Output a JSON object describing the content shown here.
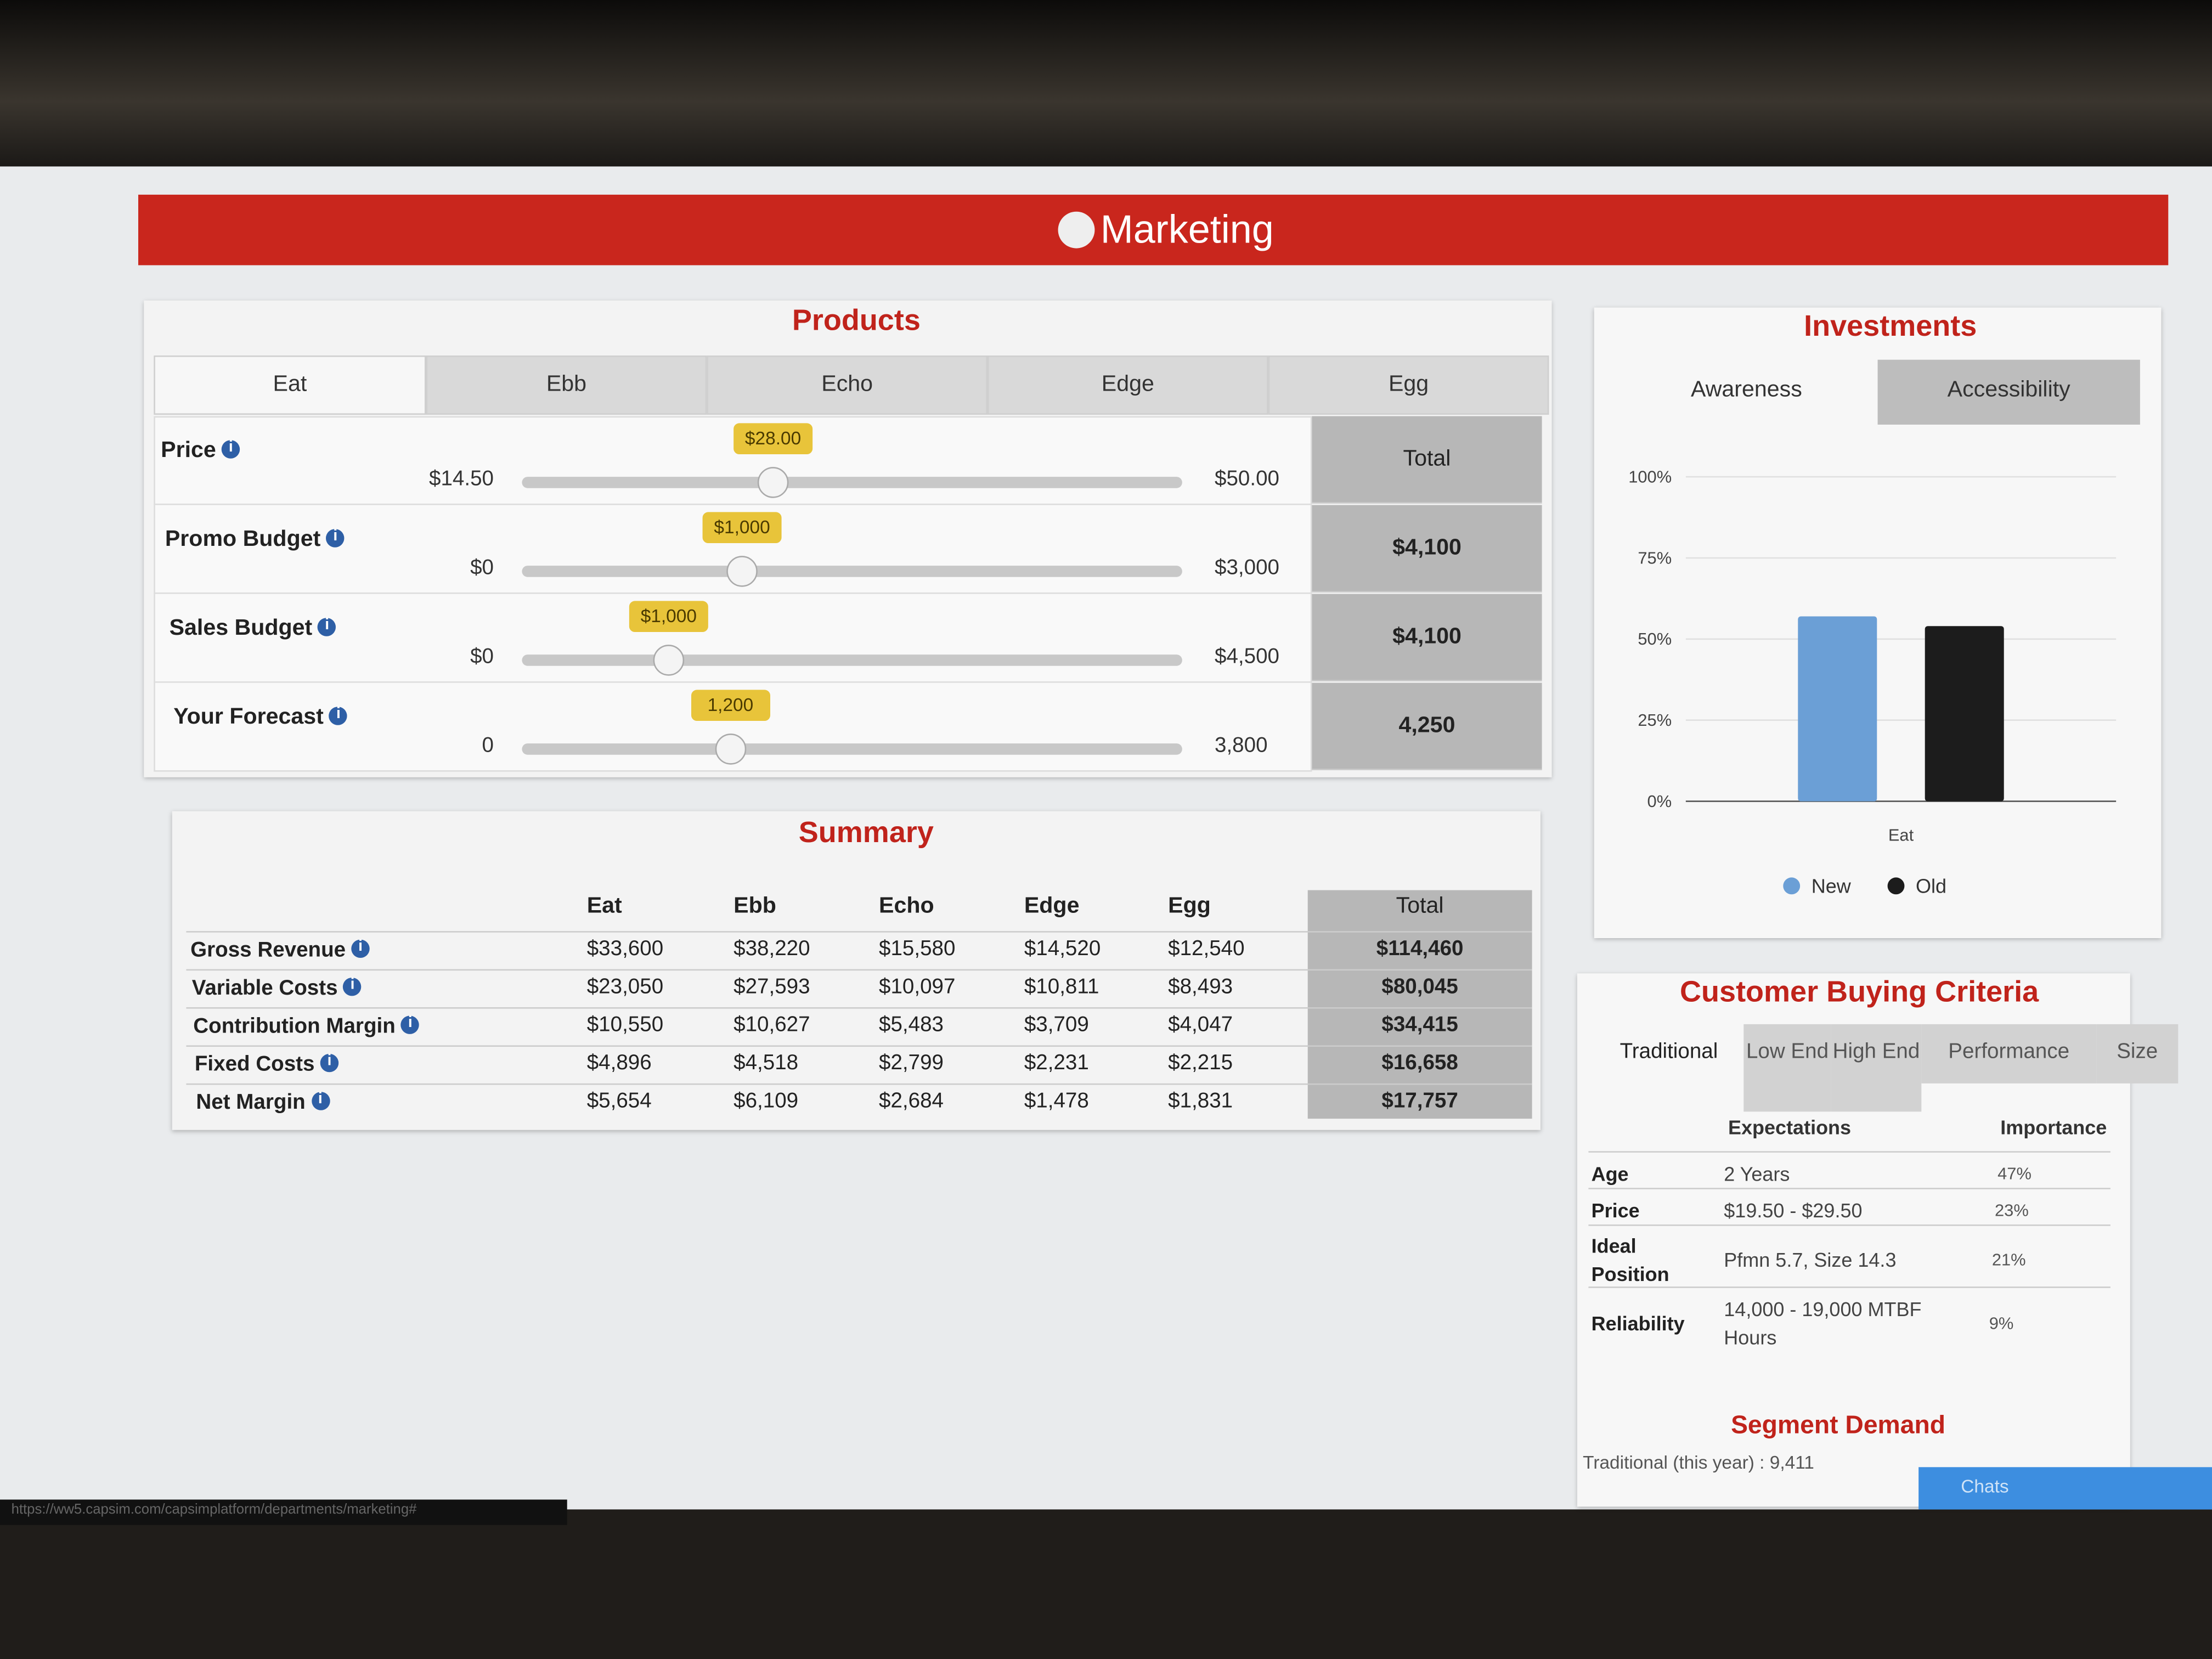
{
  "header": {
    "title": "Marketing"
  },
  "products": {
    "title": "Products",
    "tabs": [
      "Eat",
      "Ebb",
      "Echo",
      "Edge",
      "Egg"
    ],
    "total_header": "Total",
    "rows": [
      {
        "label": "Price",
        "min": {
          "value": 14.5,
          "label": "$14.50"
        },
        "max": {
          "value": 50,
          "label": "$50.00"
        },
        "value": {
          "value": 28,
          "label": "$28.00"
        }
      },
      {
        "label": "Promo Budget",
        "min": {
          "value": 0,
          "label": "$0"
        },
        "max": {
          "value": 3000,
          "label": "$3,000"
        },
        "value": {
          "value": 1000,
          "label": "$1,000"
        },
        "total": "$4,100"
      },
      {
        "label": "Sales Budget",
        "min": {
          "value": 0,
          "label": "$0"
        },
        "max": {
          "value": 4500,
          "label": "$4,500"
        },
        "value": {
          "value": 1000,
          "label": "$1,000"
        },
        "total": "$4,100"
      },
      {
        "label": "Your Forecast",
        "min": 0,
        "max": {
          "value": 3800,
          "label": "3,800"
        },
        "value": {
          "value": 1200,
          "label": "1,200"
        },
        "total": "4,250"
      }
    ]
  },
  "summary": {
    "title": "Summary",
    "columns": [
      "Eat",
      "Ebb",
      "Echo",
      "Edge",
      "Egg",
      "Total"
    ],
    "rows": [
      {
        "label": "Gross Revenue",
        "cells": [
          "$33,600",
          "$38,220",
          "$15,580",
          "$14,520",
          "$12,540",
          "$114,460"
        ]
      },
      {
        "label": "Variable Costs",
        "cells": [
          "$23,050",
          "$27,593",
          "$10,097",
          "$10,811",
          "$8,493",
          "$80,045"
        ]
      },
      {
        "label": "Contribution Margin",
        "cells": [
          "$10,550",
          "$10,627",
          "$5,483",
          "$3,709",
          "$4,047",
          "$34,415"
        ]
      },
      {
        "label": "Fixed Costs",
        "cells": [
          "$4,896",
          "$4,518",
          "$2,799",
          "$2,231",
          "$2,215",
          "$16,658"
        ]
      },
      {
        "label": "Net Margin",
        "cells": [
          "$5,654",
          "$6,109",
          "$2,684",
          "$1,478",
          "$1,831",
          "$17,757"
        ]
      }
    ]
  },
  "investments": {
    "title": "Investments",
    "tabs": [
      "Awareness",
      "Accessibility"
    ],
    "chart_data": {
      "type": "bar",
      "categories": [
        "Eat"
      ],
      "series": [
        {
          "name": "New",
          "color": "#6b9fd6",
          "values": [
            57
          ]
        },
        {
          "name": "Old",
          "color": "#1c1c1c",
          "values": [
            54
          ]
        }
      ],
      "ylim": [
        0,
        100
      ],
      "yticks": [
        {
          "value": 0,
          "label": "0%"
        },
        {
          "value": 25,
          "label": "25%"
        },
        {
          "value": 50,
          "label": "50%"
        },
        {
          "value": 75,
          "label": "75%"
        },
        {
          "value": 100,
          "label": "100%"
        }
      ],
      "grid": true
    }
  },
  "criteria": {
    "title": "Customer Buying Criteria",
    "tabs": [
      "Traditional",
      "Low End",
      "High End",
      "Performance",
      "Size"
    ],
    "headers": [
      "Expectations",
      "Importance"
    ],
    "rows": [
      [
        "Age",
        "2 Years",
        "47%"
      ],
      [
        "Price",
        "$19.50 - $29.50",
        "23%"
      ],
      [
        "Ideal Position",
        "Pfmn 5.7, Size 14.3",
        "21%"
      ],
      [
        "Reliability",
        "14,000 - 19,000 MTBF Hours",
        "9%"
      ]
    ],
    "demand_title": "Segment Demand",
    "demand_text": "Traditional (this year) : 9,411"
  },
  "chat_button": "Chats",
  "status_url": "https://ww5.capsim.com/capsimplatform/departments/marketing#"
}
